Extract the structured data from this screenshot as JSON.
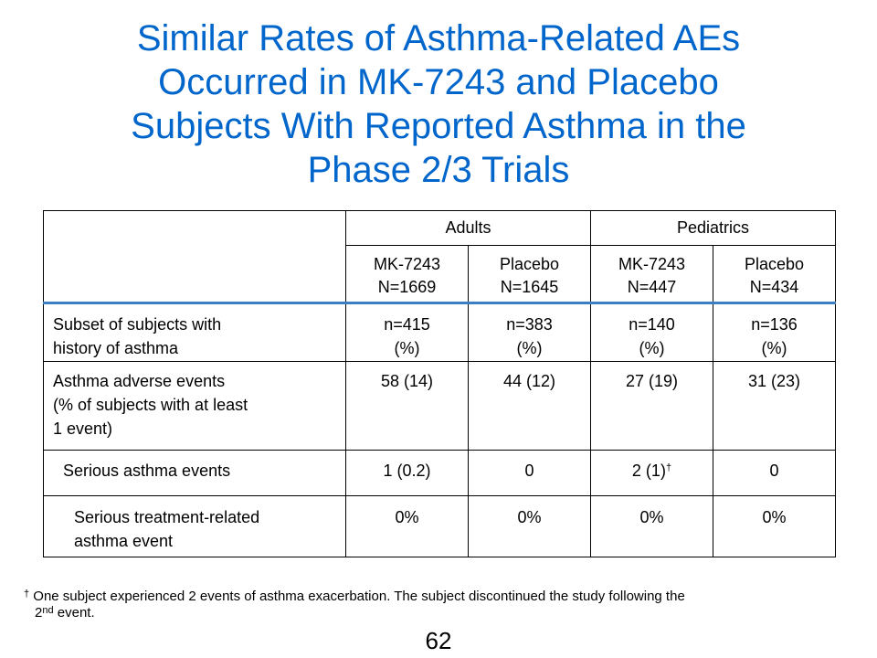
{
  "title": {
    "lines": [
      "Similar Rates of Asthma-Related AEs",
      "Occurred in MK-7243 and Placebo",
      "Subjects With Reported Asthma in the",
      "Phase 2/3 Trials"
    ]
  },
  "colors": {
    "title": "#0066CC",
    "header_rule": "#3C7FC4"
  },
  "table": {
    "groups": [
      "Adults",
      "Pediatrics"
    ],
    "arms": [
      {
        "name": "MK-7243",
        "n": "N=1669"
      },
      {
        "name": "Placebo",
        "n": "N=1645"
      },
      {
        "name": "MK-7243",
        "n": "N=447"
      },
      {
        "name": "Placebo",
        "n": "N=434"
      }
    ],
    "rows": [
      {
        "label": [
          "Subset of subjects with",
          "history of asthma"
        ],
        "values": [
          [
            "n=415",
            "(%)"
          ],
          [
            "n=383",
            "(%)"
          ],
          [
            "n=140",
            "(%)"
          ],
          [
            "n=136",
            "(%)"
          ]
        ]
      },
      {
        "label": [
          "Asthma adverse events",
          "(% of subjects with at least",
          "1 event)"
        ],
        "values": [
          "58 (14)",
          "44 (12)",
          "27 (19)",
          "31 (23)"
        ]
      },
      {
        "label": [
          "Serious asthma events"
        ],
        "values": [
          "1 (0.2)",
          "0",
          "2 (1)",
          "0"
        ],
        "footnote_mark": "†"
      },
      {
        "label": [
          "Serious treatment-related",
          "asthma event"
        ],
        "values": [
          "0%",
          "0%",
          "0%",
          "0%"
        ]
      }
    ]
  },
  "footnote": {
    "mark": "†",
    "text1": " One subject experienced 2 events of asthma exacerbation. The subject discontinued the study following the",
    "text2a": "2",
    "sup2": "nd",
    "text2b": " event."
  },
  "page_number": "62"
}
